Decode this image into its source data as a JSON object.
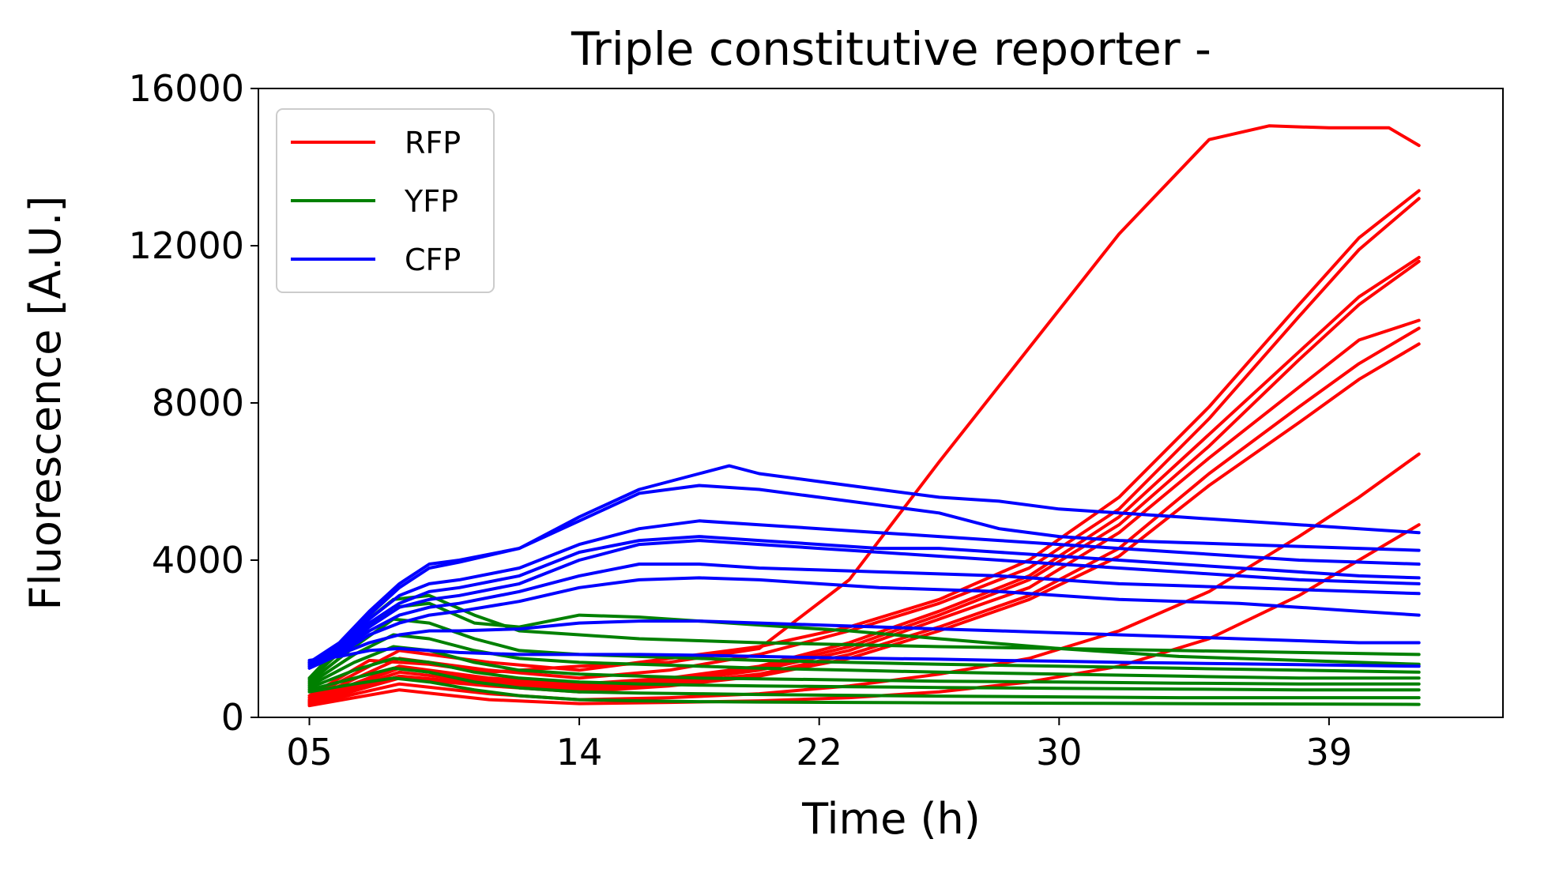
{
  "chart_data": {
    "type": "line",
    "title": "Triple constitutive reporter -",
    "xlabel": "Time (h)",
    "ylabel": "Fluorescence [A.U.]",
    "xlim": [
      3.3,
      44.8
    ],
    "ylim": [
      0,
      16000
    ],
    "x_ticks": [
      {
        "value": 5,
        "label": "05"
      },
      {
        "value": 14,
        "label": "14"
      },
      {
        "value": 22,
        "label": "22"
      },
      {
        "value": 30,
        "label": "30"
      },
      {
        "value": 39,
        "label": "39"
      }
    ],
    "y_ticks": [
      0,
      4000,
      8000,
      12000,
      16000
    ],
    "grid": false,
    "legend": {
      "position": "top-left",
      "entries": [
        {
          "label": "RFP",
          "color": "#ff0000"
        },
        {
          "label": "YFP",
          "color": "#008000"
        },
        {
          "label": "CFP",
          "color": "#0000ff"
        }
      ]
    },
    "series": [
      {
        "group": "RFP",
        "color": "#ff0000",
        "x": [
          5,
          7,
          9,
          11,
          14,
          17,
          20,
          23,
          26,
          29,
          32,
          35,
          37,
          39,
          41,
          42
        ],
        "y": [
          550,
          1450,
          1350,
          1150,
          1300,
          1400,
          1750,
          3500,
          6500,
          9400,
          12300,
          14700,
          15050,
          15000,
          15000,
          14550
        ]
      },
      {
        "group": "RFP",
        "color": "#ff0000",
        "x": [
          5,
          8,
          11,
          14,
          17,
          20,
          23,
          26,
          29,
          32,
          35,
          38,
          40,
          42
        ],
        "y": [
          500,
          1700,
          1400,
          1200,
          1500,
          1800,
          2300,
          3000,
          4000,
          5600,
          7900,
          10500,
          12200,
          13400
        ]
      },
      {
        "group": "RFP",
        "color": "#ff0000",
        "x": [
          5,
          8,
          11,
          14,
          17,
          20,
          23,
          26,
          29,
          32,
          35,
          38,
          40,
          42
        ],
        "y": [
          450,
          1500,
          1200,
          1000,
          1200,
          1600,
          2200,
          2900,
          3800,
          5300,
          7600,
          10200,
          11900,
          13200
        ]
      },
      {
        "group": "RFP",
        "color": "#ff0000",
        "x": [
          5,
          8,
          11,
          14,
          17,
          20,
          23,
          26,
          29,
          32,
          35,
          38,
          40,
          42
        ],
        "y": [
          420,
          1300,
          1000,
          850,
          1000,
          1300,
          1900,
          2700,
          3600,
          5100,
          7200,
          9300,
          10700,
          11700
        ]
      },
      {
        "group": "RFP",
        "color": "#ff0000",
        "x": [
          5,
          8,
          11,
          14,
          17,
          20,
          23,
          26,
          29,
          32,
          35,
          38,
          40,
          42
        ],
        "y": [
          400,
          1250,
          950,
          800,
          950,
          1250,
          1800,
          2600,
          3500,
          4900,
          6900,
          9100,
          10500,
          11600
        ]
      },
      {
        "group": "RFP",
        "color": "#ff0000",
        "x": [
          5,
          8,
          11,
          14,
          17,
          20,
          23,
          26,
          29,
          32,
          35,
          38,
          40,
          42
        ],
        "y": [
          380,
          1150,
          900,
          750,
          900,
          1200,
          1700,
          2500,
          3300,
          4700,
          6600,
          8400,
          9600,
          10100
        ]
      },
      {
        "group": "RFP",
        "color": "#ff0000",
        "x": [
          5,
          8,
          11,
          14,
          17,
          20,
          23,
          26,
          29,
          32,
          35,
          38,
          40,
          42
        ],
        "y": [
          360,
          1050,
          850,
          700,
          850,
          1100,
          1600,
          2300,
          3100,
          4300,
          6200,
          7900,
          9000,
          9900
        ]
      },
      {
        "group": "RFP",
        "color": "#ff0000",
        "x": [
          5,
          8,
          11,
          14,
          17,
          20,
          23,
          26,
          29,
          32,
          35,
          38,
          40,
          42
        ],
        "y": [
          350,
          1000,
          800,
          650,
          800,
          1050,
          1500,
          2200,
          3000,
          4100,
          5900,
          7500,
          8600,
          9500
        ]
      },
      {
        "group": "RFP",
        "color": "#ff0000",
        "x": [
          5,
          8,
          11,
          14,
          17,
          20,
          23,
          26,
          29,
          32,
          35,
          38,
          40,
          42
        ],
        "y": [
          330,
          850,
          600,
          450,
          500,
          600,
          800,
          1100,
          1500,
          2200,
          3200,
          4600,
          5600,
          6700
        ]
      },
      {
        "group": "RFP",
        "color": "#ff0000",
        "x": [
          5,
          8,
          11,
          14,
          17,
          20,
          23,
          26,
          29,
          32,
          35,
          38,
          40,
          42
        ],
        "y": [
          300,
          700,
          450,
          350,
          380,
          420,
          500,
          650,
          900,
          1300,
          2000,
          3100,
          4000,
          4900
        ]
      },
      {
        "group": "YFP",
        "color": "#008000",
        "x": [
          5,
          6.5,
          7.8,
          9,
          10.5,
          12,
          14,
          16,
          18,
          20,
          23,
          26,
          30,
          34,
          38,
          42
        ],
        "y": [
          1000,
          2200,
          3000,
          3100,
          2600,
          2200,
          2100,
          2000,
          1950,
          1900,
          1850,
          1800,
          1750,
          1700,
          1650,
          1600
        ]
      },
      {
        "group": "YFP",
        "color": "#008000",
        "x": [
          5,
          6.5,
          7.8,
          9,
          10.5,
          12,
          14,
          16,
          18,
          20,
          23,
          26,
          30,
          34,
          38,
          42
        ],
        "y": [
          950,
          2000,
          2800,
          2900,
          2400,
          2300,
          2600,
          2550,
          2450,
          2350,
          2200,
          2000,
          1750,
          1550,
          1450,
          1350
        ]
      },
      {
        "group": "YFP",
        "color": "#008000",
        "x": [
          5,
          6.5,
          7.8,
          9,
          10.5,
          12,
          14,
          16,
          18,
          20,
          23,
          26,
          30,
          34,
          38,
          42
        ],
        "y": [
          900,
          1800,
          2500,
          2400,
          2000,
          1700,
          1600,
          1550,
          1500,
          1450,
          1400,
          1350,
          1300,
          1250,
          1200,
          1150
        ]
      },
      {
        "group": "YFP",
        "color": "#008000",
        "x": [
          5,
          6.5,
          7.8,
          9,
          10.5,
          12,
          14,
          16,
          18,
          20,
          23,
          26,
          30,
          34,
          38,
          42
        ],
        "y": [
          850,
          1600,
          2100,
          2000,
          1700,
          1500,
          1400,
          1350,
          1300,
          1250,
          1200,
          1150,
          1100,
          1050,
          1000,
          1000
        ]
      },
      {
        "group": "YFP",
        "color": "#008000",
        "x": [
          5,
          6.5,
          7.8,
          9,
          10.5,
          12,
          14,
          16,
          18,
          20,
          23,
          26,
          30,
          34,
          38,
          42
        ],
        "y": [
          800,
          1400,
          1800,
          1700,
          1400,
          1200,
          1100,
          1050,
          1000,
          980,
          950,
          920,
          900,
          870,
          850,
          850
        ]
      },
      {
        "group": "YFP",
        "color": "#008000",
        "x": [
          5,
          6.5,
          7.8,
          9,
          10.5,
          12,
          14,
          16,
          18,
          20,
          23,
          26,
          30,
          34,
          38,
          42
        ],
        "y": [
          750,
          1200,
          1500,
          1400,
          1150,
          1000,
          900,
          850,
          820,
          800,
          780,
          760,
          740,
          720,
          700,
          700
        ]
      },
      {
        "group": "YFP",
        "color": "#008000",
        "x": [
          5,
          6.5,
          7.8,
          9,
          10.5,
          12,
          14,
          16,
          18,
          20,
          23,
          26,
          30,
          34,
          38,
          42
        ],
        "y": [
          700,
          1000,
          1250,
          1150,
          900,
          750,
          650,
          620,
          600,
          580,
          560,
          540,
          520,
          500,
          500,
          500
        ]
      },
      {
        "group": "YFP",
        "color": "#008000",
        "x": [
          5,
          6.5,
          7.8,
          9,
          10.5,
          12,
          14,
          16,
          18,
          20,
          23,
          26,
          30,
          34,
          38,
          42
        ],
        "y": [
          650,
          850,
          1000,
          900,
          700,
          550,
          450,
          420,
          400,
          390,
          380,
          370,
          360,
          350,
          340,
          330
        ]
      },
      {
        "group": "CFP",
        "color": "#0000ff",
        "x": [
          5,
          6,
          7,
          8,
          9,
          10,
          12,
          14,
          16,
          18,
          19,
          20,
          22,
          24,
          26,
          28,
          30,
          32,
          34,
          36,
          38,
          40,
          42
        ],
        "y": [
          1400,
          1900,
          2700,
          3400,
          3900,
          4000,
          4300,
          5100,
          5800,
          6200,
          6400,
          6200,
          6000,
          5800,
          5600,
          5500,
          5300,
          5200,
          5100,
          5000,
          4900,
          4800,
          4700
        ]
      },
      {
        "group": "CFP",
        "color": "#0000ff",
        "x": [
          5,
          6,
          7,
          8,
          9,
          10,
          12,
          14,
          16,
          18,
          20,
          22,
          24,
          26,
          28,
          30,
          32,
          34,
          36,
          38,
          40,
          42
        ],
        "y": [
          1400,
          1850,
          2600,
          3300,
          3800,
          3950,
          4300,
          5000,
          5700,
          5900,
          5800,
          5600,
          5400,
          5200,
          4800,
          4600,
          4500,
          4450,
          4400,
          4350,
          4300,
          4250
        ]
      },
      {
        "group": "CFP",
        "color": "#0000ff",
        "x": [
          5,
          6,
          7,
          8,
          9,
          10,
          12,
          14,
          16,
          18,
          20,
          22,
          24,
          26,
          28,
          30,
          32,
          34,
          36,
          38,
          40,
          42
        ],
        "y": [
          1350,
          1800,
          2500,
          3100,
          3400,
          3500,
          3800,
          4400,
          4800,
          5000,
          4900,
          4800,
          4700,
          4600,
          4500,
          4400,
          4300,
          4200,
          4100,
          4000,
          3950,
          3900
        ]
      },
      {
        "group": "CFP",
        "color": "#0000ff",
        "x": [
          5,
          6,
          7,
          8,
          9,
          10,
          12,
          14,
          16,
          18,
          20,
          22,
          24,
          26,
          28,
          30,
          32,
          34,
          36,
          38,
          40,
          42
        ],
        "y": [
          1350,
          1750,
          2400,
          2900,
          3200,
          3300,
          3600,
          4200,
          4500,
          4600,
          4500,
          4400,
          4300,
          4300,
          4200,
          4100,
          4000,
          3900,
          3800,
          3700,
          3600,
          3550
        ]
      },
      {
        "group": "CFP",
        "color": "#0000ff",
        "x": [
          5,
          6,
          7,
          8,
          9,
          10,
          12,
          14,
          16,
          18,
          20,
          22,
          24,
          26,
          28,
          30,
          32,
          34,
          36,
          38,
          40,
          42
        ],
        "y": [
          1300,
          1700,
          2300,
          2800,
          3000,
          3100,
          3400,
          4000,
          4400,
          4500,
          4400,
          4300,
          4200,
          4100,
          4000,
          3900,
          3800,
          3700,
          3600,
          3500,
          3450,
          3400
        ]
      },
      {
        "group": "CFP",
        "color": "#0000ff",
        "x": [
          5,
          6,
          7,
          8,
          9,
          10,
          12,
          14,
          16,
          18,
          20,
          22,
          24,
          26,
          28,
          30,
          32,
          34,
          36,
          38,
          40,
          42
        ],
        "y": [
          1300,
          1650,
          2200,
          2600,
          2800,
          2900,
          3200,
          3600,
          3900,
          3900,
          3800,
          3750,
          3700,
          3650,
          3600,
          3500,
          3400,
          3350,
          3300,
          3250,
          3200,
          3150
        ]
      },
      {
        "group": "CFP",
        "color": "#0000ff",
        "x": [
          5,
          6,
          7,
          8,
          9,
          10,
          12,
          14,
          16,
          18,
          20,
          22,
          24,
          26,
          28,
          30,
          32,
          34,
          36,
          38,
          40,
          42
        ],
        "y": [
          1250,
          1600,
          2100,
          2400,
          2600,
          2700,
          2950,
          3300,
          3500,
          3550,
          3500,
          3400,
          3300,
          3250,
          3200,
          3100,
          3000,
          2950,
          2900,
          2800,
          2700,
          2600
        ]
      },
      {
        "group": "CFP",
        "color": "#0000ff",
        "x": [
          5,
          6,
          7,
          8,
          9,
          10,
          12,
          14,
          16,
          18,
          20,
          22,
          24,
          26,
          28,
          30,
          32,
          34,
          36,
          38,
          40,
          42
        ],
        "y": [
          1400,
          1600,
          1900,
          2100,
          2200,
          2200,
          2250,
          2400,
          2450,
          2450,
          2400,
          2350,
          2300,
          2250,
          2200,
          2150,
          2100,
          2050,
          2000,
          1950,
          1900,
          1900
        ]
      },
      {
        "group": "CFP",
        "color": "#0000ff",
        "x": [
          5,
          6,
          7,
          8,
          9,
          10,
          12,
          14,
          16,
          18,
          20,
          22,
          24,
          26,
          28,
          30,
          32,
          34,
          36,
          38,
          40,
          42
        ],
        "y": [
          1450,
          1550,
          1700,
          1750,
          1700,
          1650,
          1600,
          1600,
          1600,
          1580,
          1550,
          1520,
          1500,
          1480,
          1450,
          1430,
          1400,
          1380,
          1360,
          1340,
          1320,
          1300
        ]
      }
    ]
  }
}
